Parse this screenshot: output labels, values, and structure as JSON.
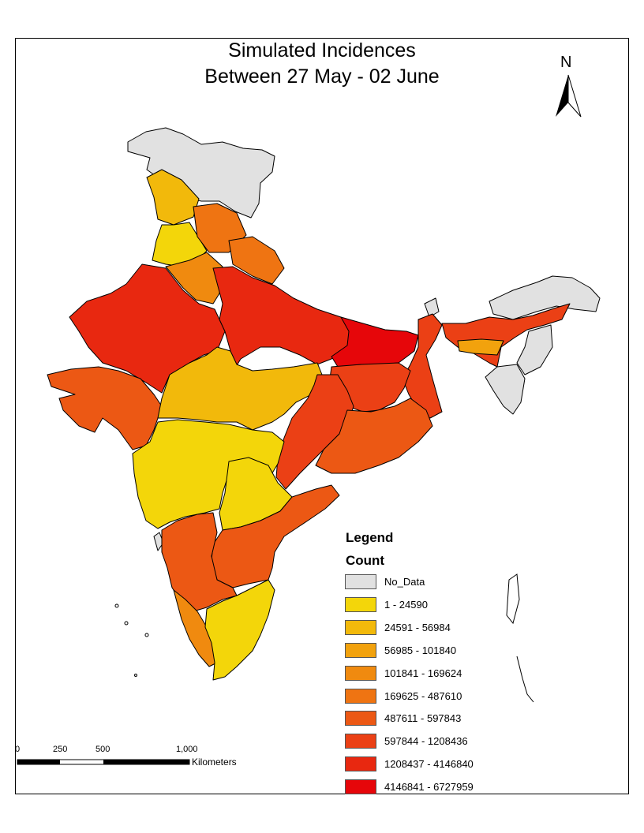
{
  "title": {
    "line1": "Simulated Incidences",
    "line2": "Between 27 May - 02 June"
  },
  "north_arrow": {
    "letter": "N"
  },
  "legend": {
    "heading": "Legend",
    "field": "Count",
    "items": [
      {
        "label": "No_Data",
        "color": "#e1e1e1"
      },
      {
        "label": "1 - 24590",
        "color": "#f3d60a"
      },
      {
        "label": "24591 - 56984",
        "color": "#f2b90b"
      },
      {
        "label": "56985 - 101840",
        "color": "#f2a20d"
      },
      {
        "label": "101841 - 169624",
        "color": "#f08a0f"
      },
      {
        "label": "169625 - 487610",
        "color": "#ef7412"
      },
      {
        "label": "487611 - 597843",
        "color": "#ec5814"
      },
      {
        "label": "597844 - 1208436",
        "color": "#eb4015"
      },
      {
        "label": "1208437 - 4146840",
        "color": "#e82810"
      },
      {
        "label": "4146841 - 6727959",
        "color": "#e6060a"
      }
    ]
  },
  "scale_bar": {
    "ticks": [
      "0",
      "250",
      "500",
      "1,000"
    ],
    "unit": "Kilometers"
  }
}
